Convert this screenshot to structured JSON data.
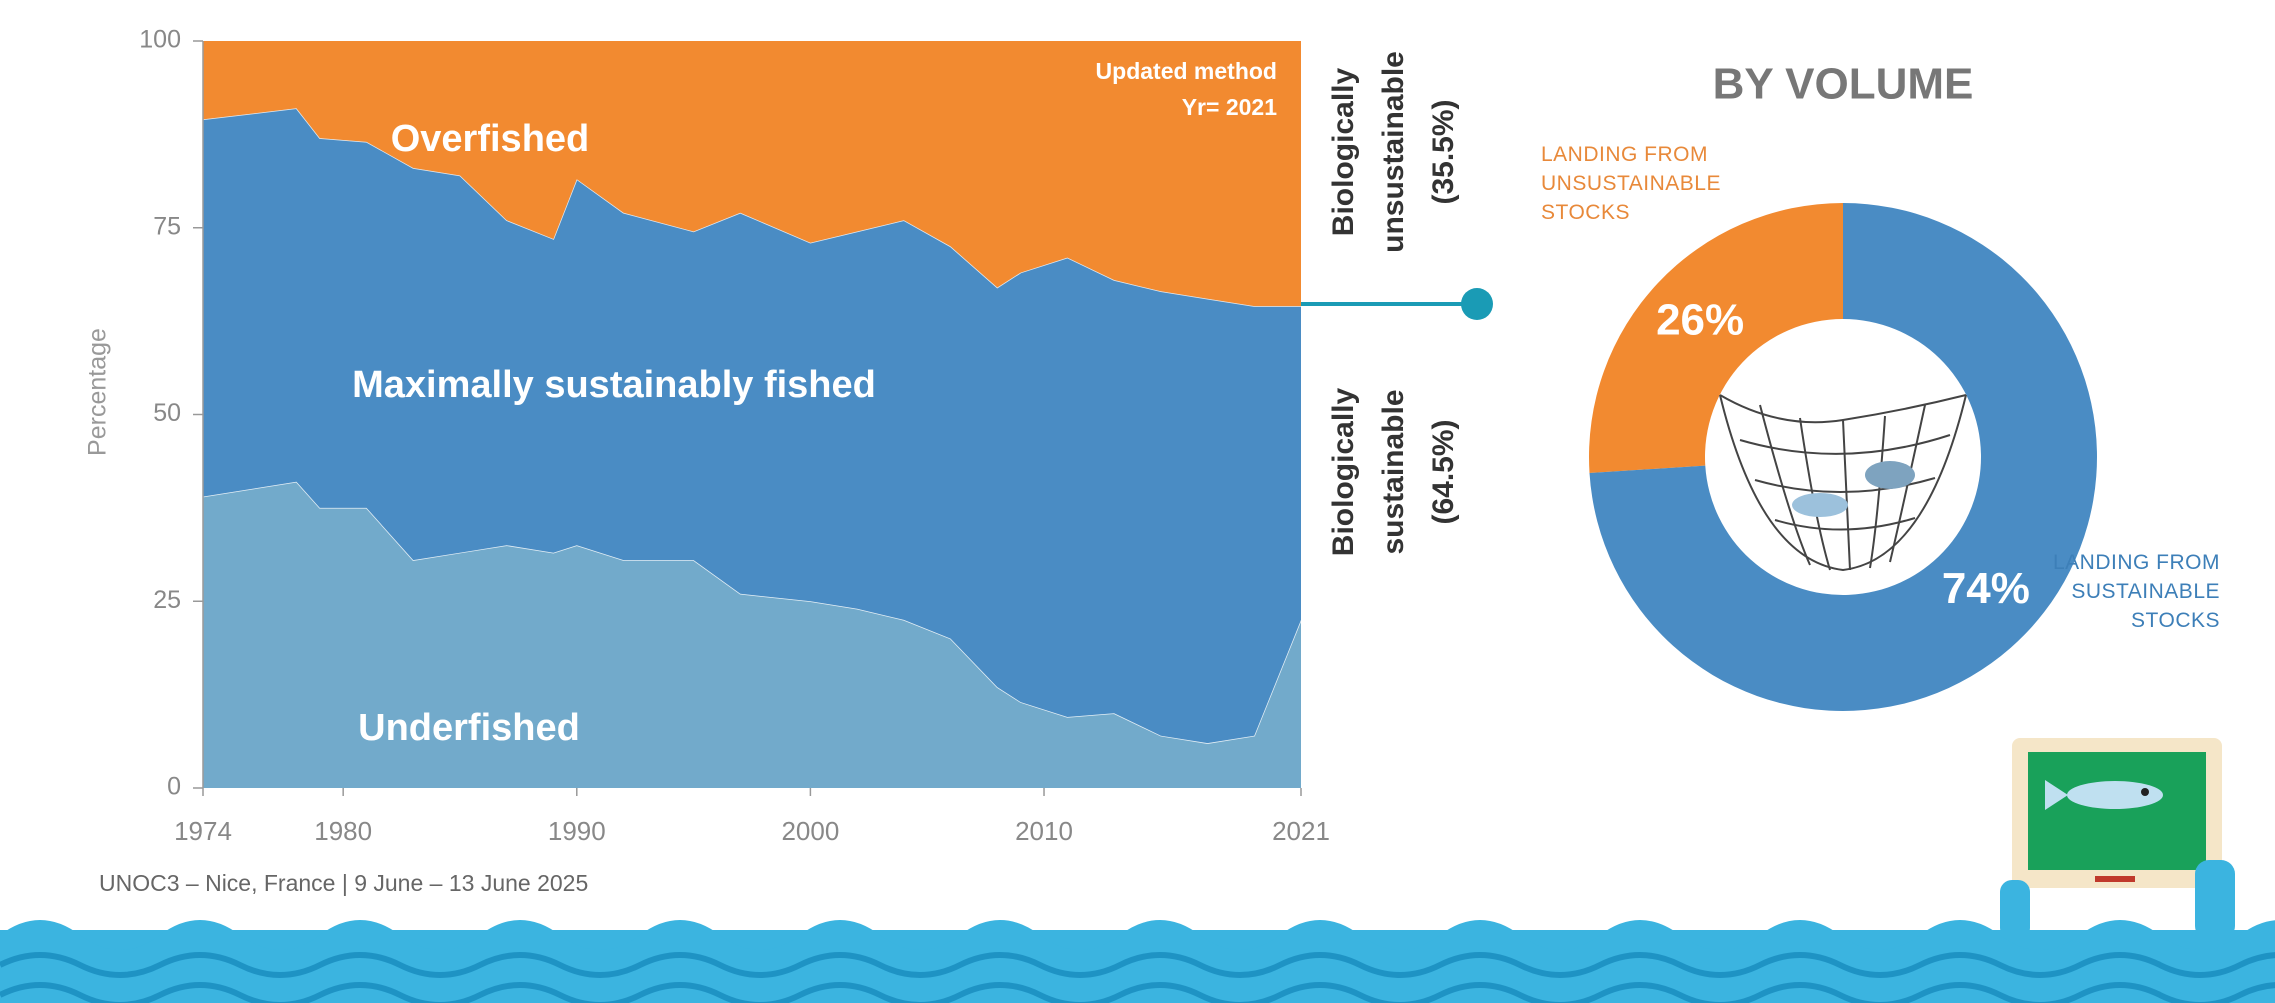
{
  "chart_data": [
    {
      "type": "stacked-area",
      "y_label": "Percentage",
      "x": [
        1974,
        1978,
        1979,
        1981,
        1983,
        1985,
        1987,
        1989,
        1990,
        1992,
        1995,
        1997,
        2000,
        2002,
        2004,
        2006,
        2008,
        2009,
        2011,
        2013,
        2015,
        2017,
        2019,
        2021
      ],
      "series": [
        {
          "name": "Underfished",
          "color": "#72aacb",
          "values": [
            39,
            41,
            37.5,
            37.5,
            30.5,
            31.5,
            32.5,
            31.5,
            32.5,
            30.5,
            30.5,
            26,
            25,
            24,
            22.5,
            20,
            13.5,
            11.5,
            9.5,
            10,
            7,
            6,
            7,
            22.5
          ]
        },
        {
          "name": "Maximally sustainably fished",
          "color": "#4a8cc4",
          "values": [
            50.5,
            50,
            49.5,
            49,
            52.5,
            50.5,
            43.5,
            42,
            49,
            46.5,
            44,
            51,
            48,
            50.5,
            53.5,
            52.5,
            53.5,
            57.5,
            61.5,
            58,
            59.5,
            59.5,
            57.5,
            42
          ]
        },
        {
          "name": "Overfished",
          "color": "#f28a30",
          "values": [
            10.5,
            9,
            13,
            13.5,
            17,
            18,
            24,
            26.5,
            18.5,
            23,
            25.5,
            23,
            27,
            25.5,
            24,
            27.5,
            33,
            31,
            29,
            32,
            33.5,
            34.5,
            35.5,
            35.5
          ]
        }
      ],
      "xlim": [
        1974,
        2021
      ],
      "xticks": [
        1974,
        1980,
        1990,
        2000,
        2010,
        2021
      ],
      "ylim": [
        0,
        100
      ],
      "yticks": [
        0,
        25,
        50,
        75,
        100
      ],
      "annotations": [
        "Updated method",
        "Yr= 2021"
      ],
      "unsustainable_label": [
        "Biologically",
        "unsustainable",
        "(35.5%)"
      ],
      "sustainable_label": [
        "Biologically",
        "sustainable",
        "(64.5%)"
      ]
    },
    {
      "type": "donut",
      "title": "BY VOLUME",
      "categories": [
        "LANDING FROM UNSUSTAINABLE STOCKS",
        "LANDING FROM SUSTAINABLE STOCKS"
      ],
      "values": [
        26,
        74
      ],
      "value_labels": [
        "26%",
        "74%"
      ],
      "colors": [
        "#f28a30",
        "#4a8cc4"
      ]
    }
  ],
  "footer": "UNOC3 – Nice, France | 9 June – 13 June 2025"
}
